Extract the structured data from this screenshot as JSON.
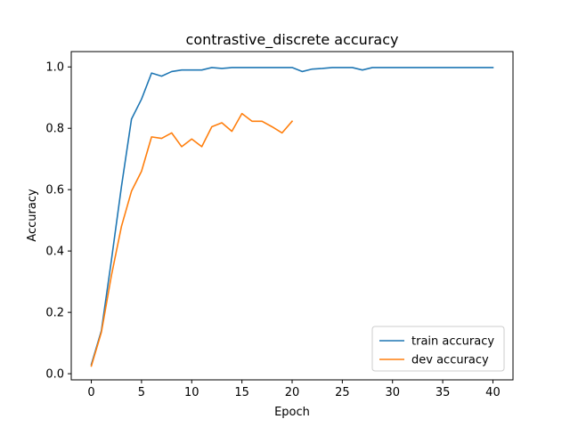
{
  "chart_data": {
    "type": "line",
    "title": "contrastive_discrete accuracy",
    "xlabel": "Epoch",
    "ylabel": "Accuracy",
    "xlim": [
      -2,
      42
    ],
    "ylim": [
      -0.02,
      1.05
    ],
    "xticks": [
      0,
      5,
      10,
      15,
      20,
      25,
      30,
      35,
      40
    ],
    "yticks": [
      0.0,
      0.2,
      0.4,
      0.6,
      0.8,
      1.0
    ],
    "ytick_labels": [
      "0.0",
      "0.2",
      "0.4",
      "0.6",
      "0.8",
      "1.0"
    ],
    "legend": "lower-right",
    "grid": false,
    "series": [
      {
        "name": "train accuracy",
        "color": "#1f77b4",
        "x": [
          0,
          1,
          2,
          3,
          4,
          5,
          6,
          7,
          8,
          9,
          10,
          11,
          12,
          13,
          14,
          15,
          16,
          17,
          18,
          19,
          20,
          21,
          22,
          23,
          24,
          25,
          26,
          27,
          28,
          29,
          30,
          31,
          32,
          33,
          34,
          35,
          36,
          37,
          38,
          39,
          40
        ],
        "y": [
          0.03,
          0.14,
          0.37,
          0.61,
          0.83,
          0.895,
          0.98,
          0.97,
          0.985,
          0.99,
          0.99,
          0.99,
          0.998,
          0.995,
          0.998,
          0.998,
          0.998,
          0.998,
          0.998,
          0.998,
          0.998,
          0.985,
          0.993,
          0.995,
          0.998,
          0.998,
          0.998,
          0.99,
          0.998,
          0.998,
          0.998,
          0.998,
          0.998,
          0.998,
          0.998,
          0.998,
          0.998,
          0.998,
          0.998,
          0.998,
          0.998
        ]
      },
      {
        "name": "dev accuracy",
        "color": "#ff7f0e",
        "x": [
          0,
          1,
          2,
          3,
          4,
          5,
          6,
          7,
          8,
          9,
          10,
          11,
          12,
          13,
          14,
          15,
          16,
          17,
          18,
          19,
          20
        ],
        "y": [
          0.025,
          0.135,
          0.32,
          0.48,
          0.595,
          0.66,
          0.772,
          0.767,
          0.785,
          0.74,
          0.765,
          0.74,
          0.805,
          0.818,
          0.79,
          0.848,
          0.823,
          0.823,
          0.805,
          0.785,
          0.823
        ]
      }
    ]
  }
}
